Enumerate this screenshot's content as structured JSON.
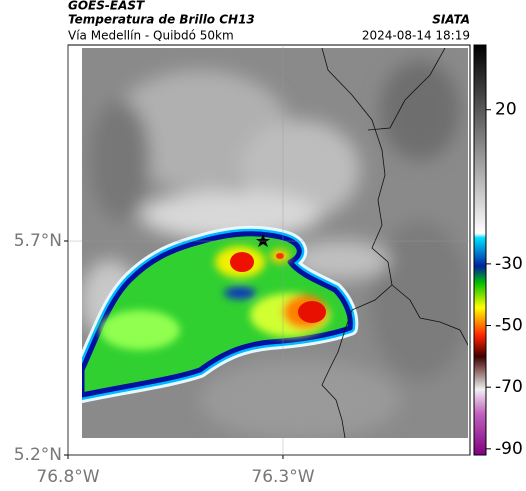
{
  "header": {
    "source": "GOES-EAST",
    "title": "Temperatura de Brillo CH13",
    "subtitle": "Vía Medellín - Quibdó 50km",
    "brand": "SIATA",
    "datetime": "2024-08-14 18:19"
  },
  "map": {
    "xlim": [
      -76.8,
      -75.865
    ],
    "ylim": [
      5.2,
      6.158
    ],
    "xticks": [
      {
        "value": -76.8,
        "label": "76.8°W"
      },
      {
        "value": -76.3,
        "label": "76.3°W"
      }
    ],
    "yticks": [
      {
        "value": 5.2,
        "label": "5.2°N"
      },
      {
        "value": 5.7,
        "label": "5.7°N"
      }
    ]
  },
  "colorbar": {
    "lim": [
      -92,
      41
    ],
    "ticks": [
      20,
      -30,
      -50,
      -70,
      -90
    ]
  }
}
